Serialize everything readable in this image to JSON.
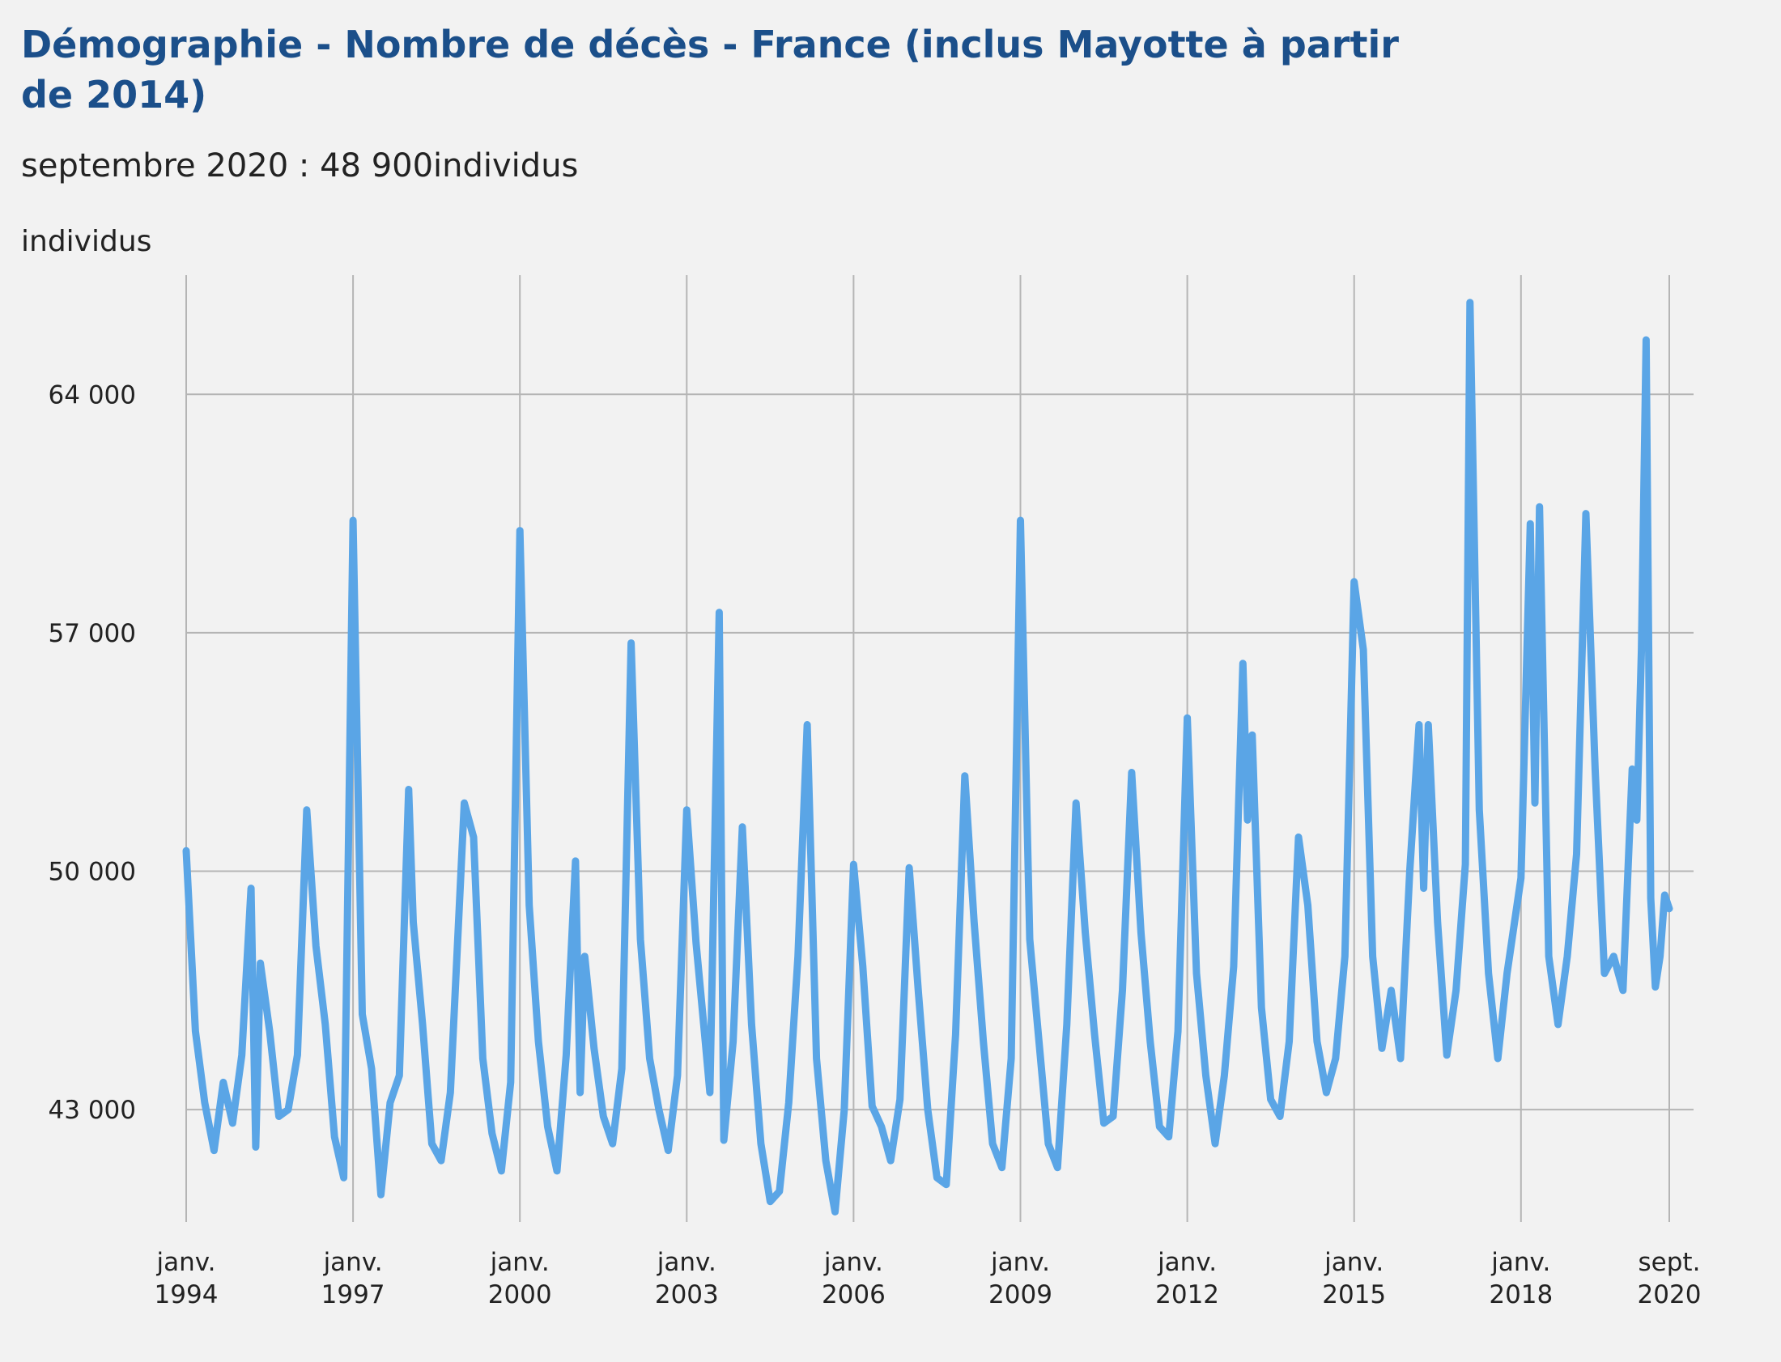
{
  "header": {
    "title": "Démographie - Nombre de décès - France (inclus Mayotte à partir de 2014)",
    "subtitle": "septembre 2020 : 48 900individus",
    "y_unit": "individus"
  },
  "colors": {
    "line": "#5aa5e6",
    "grid": "#b5b5b5",
    "title": "#1b4f8a",
    "background": "#f2f2f2"
  },
  "chart_data": {
    "type": "line",
    "title": "Démographie - Nombre de décès - France (inclus Mayotte à partir de 2014)",
    "ylabel": "individus",
    "xlabel": "",
    "ylim": [
      39700,
      67500
    ],
    "xlim": [
      "1994-01",
      "2020-09"
    ],
    "yticks": [
      {
        "value": 43000,
        "label": "43 000"
      },
      {
        "value": 50000,
        "label": "50 000"
      },
      {
        "value": 57000,
        "label": "57 000"
      },
      {
        "value": 64000,
        "label": "64 000"
      }
    ],
    "xticks": [
      {
        "date": "1994-01",
        "label": [
          "janv.",
          "1994"
        ]
      },
      {
        "date": "1997-01",
        "label": [
          "janv.",
          "1997"
        ]
      },
      {
        "date": "2000-01",
        "label": [
          "janv.",
          "2000"
        ]
      },
      {
        "date": "2003-01",
        "label": [
          "janv.",
          "2003"
        ]
      },
      {
        "date": "2006-01",
        "label": [
          "janv.",
          "2006"
        ]
      },
      {
        "date": "2009-01",
        "label": [
          "janv.",
          "2009"
        ]
      },
      {
        "date": "2012-01",
        "label": [
          "janv.",
          "2012"
        ]
      },
      {
        "date": "2015-01",
        "label": [
          "janv.",
          "2015"
        ]
      },
      {
        "date": "2018-01",
        "label": [
          "janv.",
          "2018"
        ]
      },
      {
        "date": "2020-09",
        "label": [
          "sept.",
          "2020"
        ]
      }
    ],
    "grid": true,
    "legend": "none",
    "series": [
      {
        "points": [
          [
            "1994-01",
            50600
          ],
          [
            "1994-03",
            45300
          ],
          [
            "1994-05",
            43200
          ],
          [
            "1994-07",
            41800
          ],
          [
            "1994-09",
            43800
          ],
          [
            "1994-11",
            42600
          ],
          [
            "1995-01",
            44600
          ],
          [
            "1995-03",
            49500
          ],
          [
            "1995-04",
            41900
          ],
          [
            "1995-05",
            47300
          ],
          [
            "1995-07",
            45300
          ],
          [
            "1995-09",
            42800
          ],
          [
            "1995-11",
            43000
          ],
          [
            "1996-01",
            44600
          ],
          [
            "1996-03",
            51800
          ],
          [
            "1996-05",
            47800
          ],
          [
            "1996-07",
            45500
          ],
          [
            "1996-09",
            42200
          ],
          [
            "1996-11",
            41000
          ],
          [
            "1997-01",
            60300
          ],
          [
            "1997-03",
            45800
          ],
          [
            "1997-05",
            44200
          ],
          [
            "1997-07",
            40500
          ],
          [
            "1997-09",
            43200
          ],
          [
            "1997-11",
            44000
          ],
          [
            "1998-01",
            52400
          ],
          [
            "1998-02",
            48500
          ],
          [
            "1998-04",
            45500
          ],
          [
            "1998-06",
            42000
          ],
          [
            "1998-08",
            41500
          ],
          [
            "1998-10",
            43500
          ],
          [
            "1999-01",
            52000
          ],
          [
            "1999-03",
            51000
          ],
          [
            "1999-05",
            44500
          ],
          [
            "1999-07",
            42300
          ],
          [
            "1999-09",
            41200
          ],
          [
            "1999-11",
            43800
          ],
          [
            "2000-01",
            60000
          ],
          [
            "2000-03",
            49000
          ],
          [
            "2000-05",
            45000
          ],
          [
            "2000-07",
            42500
          ],
          [
            "2000-09",
            41200
          ],
          [
            "2000-11",
            44600
          ],
          [
            "2001-01",
            50300
          ],
          [
            "2001-02",
            43500
          ],
          [
            "2001-03",
            47500
          ],
          [
            "2001-05",
            44800
          ],
          [
            "2001-07",
            42800
          ],
          [
            "2001-09",
            42000
          ],
          [
            "2001-11",
            44200
          ],
          [
            "2002-01",
            56700
          ],
          [
            "2002-03",
            48000
          ],
          [
            "2002-05",
            44500
          ],
          [
            "2002-07",
            43000
          ],
          [
            "2002-09",
            41800
          ],
          [
            "2002-11",
            44000
          ],
          [
            "2003-01",
            51800
          ],
          [
            "2003-03",
            47900
          ],
          [
            "2003-05",
            45000
          ],
          [
            "2003-06",
            43500
          ],
          [
            "2003-08",
            57600
          ],
          [
            "2003-09",
            42100
          ],
          [
            "2003-11",
            45000
          ],
          [
            "2004-01",
            51300
          ],
          [
            "2004-03",
            45500
          ],
          [
            "2004-05",
            42000
          ],
          [
            "2004-07",
            40300
          ],
          [
            "2004-09",
            40600
          ],
          [
            "2004-11",
            43200
          ],
          [
            "2005-01",
            47500
          ],
          [
            "2005-03",
            54300
          ],
          [
            "2005-05",
            44500
          ],
          [
            "2005-07",
            41500
          ],
          [
            "2005-09",
            40000
          ],
          [
            "2005-11",
            43000
          ],
          [
            "2006-01",
            50200
          ],
          [
            "2006-03",
            47200
          ],
          [
            "2006-05",
            43100
          ],
          [
            "2006-07",
            42500
          ],
          [
            "2006-09",
            41500
          ],
          [
            "2006-11",
            43300
          ],
          [
            "2007-01",
            50100
          ],
          [
            "2007-03",
            46400
          ],
          [
            "2007-05",
            43000
          ],
          [
            "2007-07",
            41000
          ],
          [
            "2007-09",
            40800
          ],
          [
            "2007-11",
            45200
          ],
          [
            "2008-01",
            52800
          ],
          [
            "2008-03",
            48500
          ],
          [
            "2008-05",
            45000
          ],
          [
            "2008-07",
            42000
          ],
          [
            "2008-09",
            41300
          ],
          [
            "2008-11",
            44500
          ],
          [
            "2009-01",
            60300
          ],
          [
            "2009-03",
            48000
          ],
          [
            "2009-05",
            45000
          ],
          [
            "2009-07",
            42000
          ],
          [
            "2009-09",
            41300
          ],
          [
            "2009-11",
            45500
          ],
          [
            "2010-01",
            52000
          ],
          [
            "2010-03",
            48200
          ],
          [
            "2010-05",
            45200
          ],
          [
            "2010-07",
            42600
          ],
          [
            "2010-09",
            42800
          ],
          [
            "2010-11",
            46500
          ],
          [
            "2011-01",
            52900
          ],
          [
            "2011-03",
            48200
          ],
          [
            "2011-05",
            45000
          ],
          [
            "2011-07",
            42500
          ],
          [
            "2011-09",
            42200
          ],
          [
            "2011-11",
            45300
          ],
          [
            "2012-01",
            54500
          ],
          [
            "2012-03",
            47000
          ],
          [
            "2012-05",
            44000
          ],
          [
            "2012-07",
            42000
          ],
          [
            "2012-09",
            44000
          ],
          [
            "2012-11",
            47200
          ],
          [
            "2013-01",
            56100
          ],
          [
            "2013-02",
            51500
          ],
          [
            "2013-03",
            54000
          ],
          [
            "2013-05",
            46000
          ],
          [
            "2013-07",
            43300
          ],
          [
            "2013-09",
            42800
          ],
          [
            "2013-11",
            45000
          ],
          [
            "2014-01",
            51000
          ],
          [
            "2014-03",
            49000
          ],
          [
            "2014-05",
            45000
          ],
          [
            "2014-07",
            43500
          ],
          [
            "2014-09",
            44500
          ],
          [
            "2014-11",
            47500
          ],
          [
            "2015-01",
            58500
          ],
          [
            "2015-03",
            56500
          ],
          [
            "2015-05",
            47500
          ],
          [
            "2015-07",
            44800
          ],
          [
            "2015-09",
            46500
          ],
          [
            "2015-11",
            44500
          ],
          [
            "2016-01",
            50000
          ],
          [
            "2016-03",
            54300
          ],
          [
            "2016-04",
            49500
          ],
          [
            "2016-05",
            54300
          ],
          [
            "2016-07",
            48500
          ],
          [
            "2016-09",
            44600
          ],
          [
            "2016-11",
            46500
          ],
          [
            "2017-01",
            50200
          ],
          [
            "2017-02",
            66700
          ],
          [
            "2017-04",
            51800
          ],
          [
            "2017-06",
            47000
          ],
          [
            "2017-08",
            44500
          ],
          [
            "2017-10",
            47000
          ],
          [
            "2018-01",
            49800
          ],
          [
            "2018-03",
            60200
          ],
          [
            "2018-04",
            52000
          ],
          [
            "2018-05",
            60700
          ],
          [
            "2018-07",
            47500
          ],
          [
            "2018-09",
            45500
          ],
          [
            "2018-11",
            47500
          ],
          [
            "2019-01",
            50500
          ],
          [
            "2019-03",
            60500
          ],
          [
            "2019-05",
            53000
          ],
          [
            "2019-07",
            47000
          ],
          [
            "2019-09",
            47500
          ],
          [
            "2019-11",
            46500
          ],
          [
            "2020-01",
            53000
          ],
          [
            "2020-02",
            51500
          ],
          [
            "2020-03",
            56500
          ],
          [
            "2020-04",
            65600
          ],
          [
            "2020-05",
            49200
          ],
          [
            "2020-06",
            46600
          ],
          [
            "2020-07",
            47500
          ],
          [
            "2020-08",
            49300
          ],
          [
            "2020-09",
            48900
          ]
        ]
      }
    ]
  }
}
